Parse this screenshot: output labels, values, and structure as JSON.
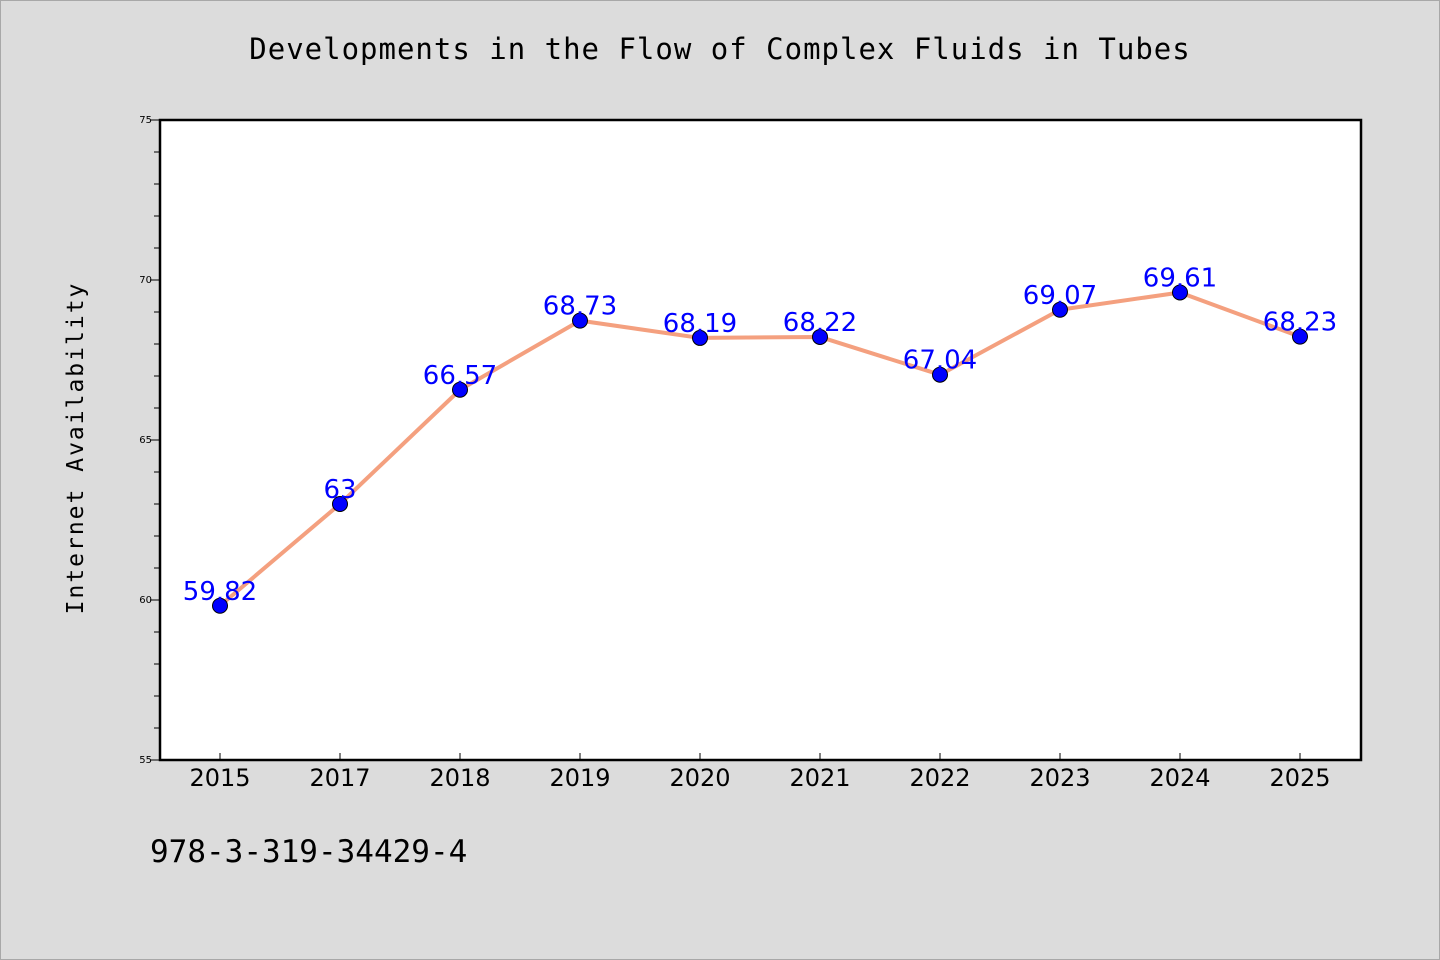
{
  "chart_data": {
    "type": "line",
    "title": "Developments in the Flow of Complex Fluids in Tubes",
    "xlabel": "",
    "ylabel": "Internet Availability",
    "categories": [
      "2015",
      "2017",
      "2018",
      "2019",
      "2020",
      "2021",
      "2022",
      "2023",
      "2024",
      "2025"
    ],
    "series": [
      {
        "values": [
          59.82,
          63,
          66.57,
          68.73,
          68.19,
          68.22,
          67.04,
          69.07,
          69.61,
          68.23
        ],
        "labels": [
          "59.82",
          "63",
          "66.57",
          "68.73",
          "68.19",
          "68.22",
          "67.04",
          "69.07",
          "69.61",
          "68.23"
        ],
        "line_color": "#f4a07f",
        "marker_color": "#0000ff"
      }
    ],
    "ylim": [
      55,
      75
    ],
    "yticks": [
      "55",
      "60",
      "65",
      "70",
      "75"
    ],
    "grid": false,
    "legend": "none"
  },
  "footer": {
    "isbn": "978-3-319-34429-4"
  },
  "colors": {
    "background": "#dcdcdc",
    "plot_background": "#ffffff",
    "line": "#f4a07f",
    "marker": "#0000ff",
    "label": "#0000ff"
  }
}
